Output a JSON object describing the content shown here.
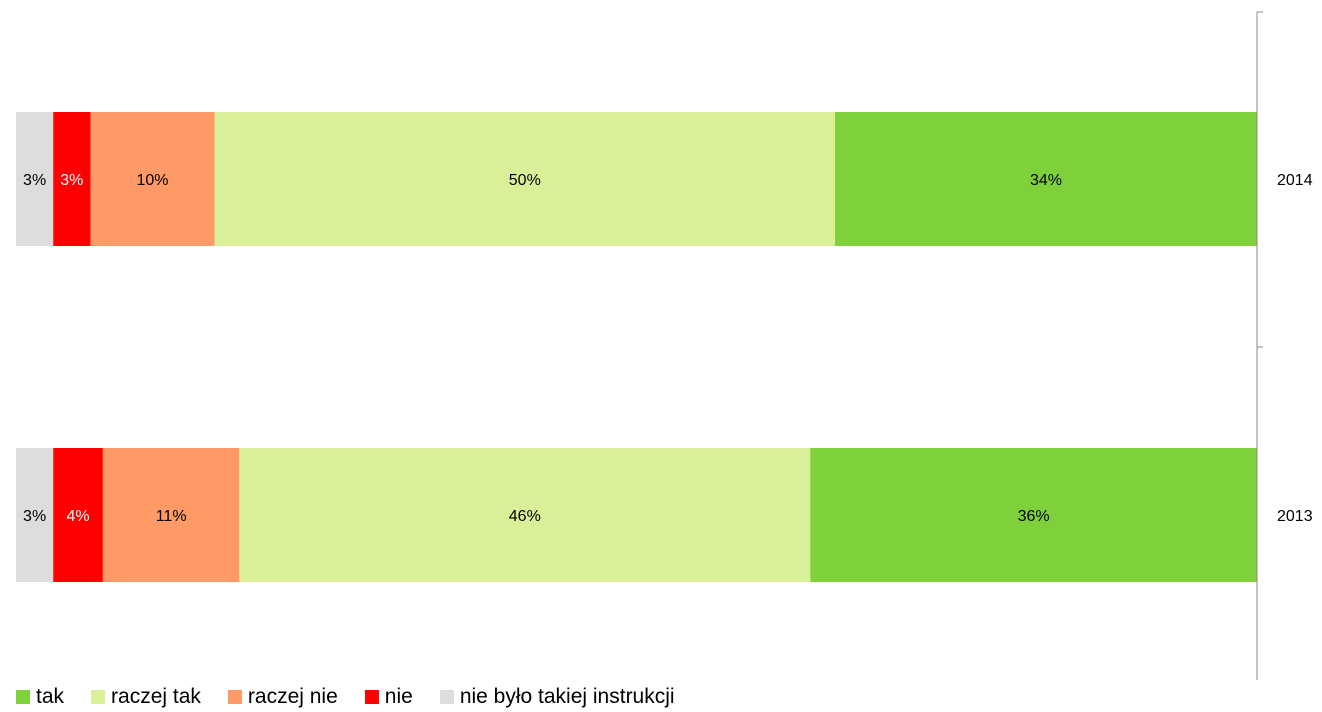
{
  "chart_data": {
    "type": "bar",
    "orientation": "horizontal",
    "stacked": true,
    "categories": [
      "2014",
      "2013"
    ],
    "series": [
      {
        "name": "nie było takiej instrukcji",
        "color": "#DDDDDD",
        "values": [
          3,
          3
        ],
        "labels": [
          "3%",
          "3%"
        ],
        "label_color": "#000000"
      },
      {
        "name": "nie",
        "color": "#FF0000",
        "values": [
          3,
          4
        ],
        "labels": [
          "3%",
          "4%"
        ],
        "label_color": "#FFFFFF"
      },
      {
        "name": "raczej nie",
        "color": "#FF9966",
        "values": [
          10,
          11
        ],
        "labels": [
          "10%",
          "11%"
        ],
        "label_color": "#000000"
      },
      {
        "name": "raczej tak",
        "color": "#D9F099",
        "values": [
          50,
          46
        ],
        "labels": [
          "50%",
          "46%"
        ],
        "label_color": "#000000"
      },
      {
        "name": "tak",
        "color": "#7FD13B",
        "values": [
          34,
          36
        ],
        "labels": [
          "34%",
          "36%"
        ],
        "label_color": "#000000"
      }
    ],
    "legend_order": [
      "tak",
      "raczej tak",
      "raczej nie",
      "nie",
      "nie było takiej instrukcji"
    ],
    "legend_position": "bottom",
    "grid": false
  }
}
